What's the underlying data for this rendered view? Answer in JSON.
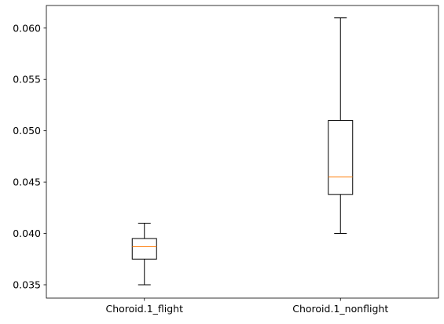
{
  "chart_data": {
    "type": "boxplot",
    "title": "",
    "xlabel": "",
    "ylabel": "",
    "categories": [
      "Choroid.1_flight",
      "Choroid.1_nonflight"
    ],
    "boxes": [
      {
        "category": "Choroid.1_flight",
        "whisker_low": 0.035,
        "q1": 0.0375,
        "median": 0.0387,
        "q3": 0.0395,
        "whisker_high": 0.041
      },
      {
        "category": "Choroid.1_nonflight",
        "whisker_low": 0.04,
        "q1": 0.0438,
        "median": 0.0455,
        "q3": 0.051,
        "whisker_high": 0.061
      }
    ],
    "ylim": [
      0.0337,
      0.0622
    ],
    "yticks": [
      0.035,
      0.04,
      0.045,
      0.05,
      0.055,
      0.06
    ],
    "ytick_labels": [
      "0.035",
      "0.040",
      "0.045",
      "0.050",
      "0.055",
      "0.060"
    ],
    "grid": false,
    "colors": {
      "box": "#000000",
      "median": "#ff7f0e"
    }
  }
}
